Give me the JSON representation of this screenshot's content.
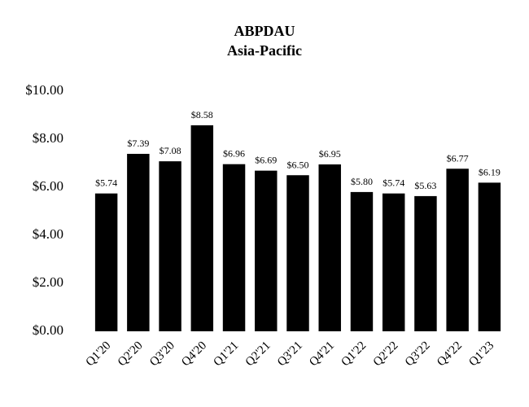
{
  "chart_data": {
    "type": "bar",
    "title": "ABPDAU",
    "subtitle": "Asia-Pacific",
    "categories": [
      "Q1'20",
      "Q2'20",
      "Q3'20",
      "Q4'20",
      "Q1'21",
      "Q2'21",
      "Q3'21",
      "Q4'21",
      "Q1'22",
      "Q2'22",
      "Q3'22",
      "Q4'22",
      "Q1'23"
    ],
    "values": [
      5.74,
      7.39,
      7.08,
      8.58,
      6.96,
      6.69,
      6.5,
      6.95,
      5.8,
      5.74,
      5.63,
      6.77,
      6.19
    ],
    "value_labels": [
      "$5.74",
      "$7.39",
      "$7.08",
      "$8.58",
      "$6.96",
      "$6.69",
      "$6.50",
      "$6.95",
      "$5.80",
      "$5.74",
      "$5.63",
      "$6.77",
      "$6.19"
    ],
    "color": "#000000",
    "ylim": [
      0,
      10
    ],
    "yticks": [
      {
        "value": 0,
        "label": "$0.00"
      },
      {
        "value": 2,
        "label": "$2.00"
      },
      {
        "value": 4,
        "label": "$4.00"
      },
      {
        "value": 6,
        "label": "$6.00"
      },
      {
        "value": 8,
        "label": "$8.00"
      },
      {
        "value": 10,
        "label": "$10.00"
      }
    ],
    "grid": false
  }
}
